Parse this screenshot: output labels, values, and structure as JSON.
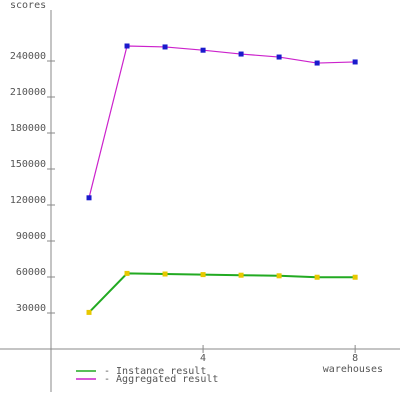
{
  "chart_data": {
    "type": "line",
    "y_label": "scores",
    "x_label": "warehouses",
    "x": [
      1,
      2,
      3,
      4,
      5,
      6,
      7,
      8
    ],
    "series": [
      {
        "name": "- Instance result",
        "color": "#22aa22",
        "marker_color": "#e8c800",
        "values": [
          30500,
          63000,
          62500,
          62000,
          61500,
          61000,
          59800,
          59800
        ]
      },
      {
        "name": "- Aggregated result",
        "color": "#cc22cc",
        "marker_color": "#1a1acc",
        "values": [
          126000,
          252500,
          251700,
          249000,
          245800,
          243300,
          238300,
          239200
        ]
      }
    ],
    "xlim": [
      0,
      9.18
    ],
    "ylim": [
      -30000,
      282500
    ],
    "xticks": [
      4,
      8
    ],
    "yticks": [
      30000,
      60000,
      90000,
      120000,
      150000,
      180000,
      210000,
      240000
    ]
  }
}
